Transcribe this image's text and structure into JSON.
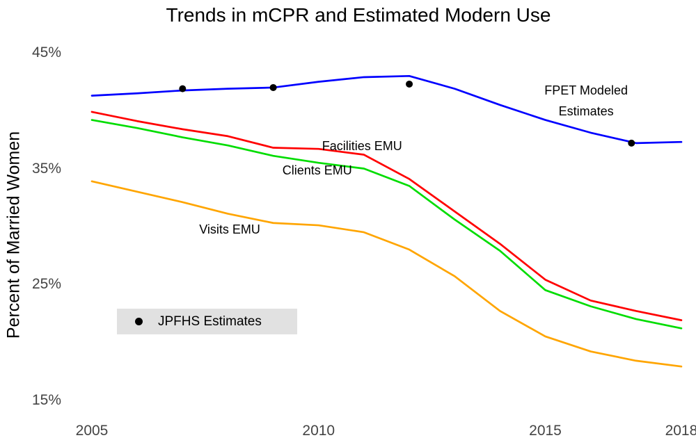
{
  "chart_data": {
    "type": "line",
    "title": "Trends in mCPR and Estimated Modern Use",
    "ylabel": "Percent of Married Women",
    "xlabel": "",
    "grid": false,
    "xlim": [
      2004.5,
      2018.3
    ],
    "ylim": [
      13.5,
      46.5
    ],
    "x_ticks": [
      {
        "value": 2005,
        "label": "2005"
      },
      {
        "value": 2010,
        "label": "2010"
      },
      {
        "value": 2015,
        "label": "2015"
      },
      {
        "value": 2018,
        "label": "2018"
      }
    ],
    "y_ticks": [
      {
        "value": 45,
        "label": "45%"
      },
      {
        "value": 35,
        "label": "35%"
      },
      {
        "value": 25,
        "label": "25%"
      },
      {
        "value": 15,
        "label": "15%"
      }
    ],
    "x": [
      2005,
      2006,
      2007,
      2008,
      2009,
      2010,
      2011,
      2012,
      2013,
      2014,
      2015,
      2016,
      2017,
      2018
    ],
    "series": [
      {
        "id": "fpet",
        "name": "FPET Modeled Estimates",
        "color": "#0000ff",
        "values": [
          41.3,
          41.5,
          41.75,
          41.9,
          42.0,
          42.5,
          42.9,
          43.0,
          41.9,
          40.5,
          39.2,
          38.1,
          37.2,
          37.3
        ]
      },
      {
        "id": "facilities-emu",
        "name": "Facilities EMU",
        "color": "#ff0000",
        "values": [
          39.9,
          39.1,
          38.4,
          37.8,
          36.8,
          36.7,
          36.2,
          34.1,
          31.3,
          28.5,
          25.4,
          23.6,
          22.7,
          21.9
        ]
      },
      {
        "id": "clients-emu",
        "name": "Clients EMU",
        "color": "#00dd00",
        "values": [
          39.2,
          38.5,
          37.7,
          37.0,
          36.1,
          35.5,
          35.0,
          33.5,
          30.6,
          27.9,
          24.5,
          23.1,
          22.0,
          21.2
        ]
      },
      {
        "id": "visits-emu",
        "name": "Visits EMU",
        "color": "#ffa500",
        "values": [
          33.9,
          33.0,
          32.1,
          31.1,
          30.3,
          30.1,
          29.5,
          28.0,
          25.7,
          22.7,
          20.5,
          19.2,
          18.4,
          17.9
        ]
      }
    ],
    "scatter": {
      "name": "JPFHS Estimates",
      "color": "#000000",
      "points": [
        {
          "x": 2007,
          "y": 41.9
        },
        {
          "x": 2009,
          "y": 42.0
        },
        {
          "x": 2012,
          "y": 42.3
        },
        {
          "x": 2016.9,
          "y": 37.2
        }
      ]
    },
    "annotations": [
      {
        "id": "fpet-label",
        "lines": [
          "FPET Modeled",
          "Estimates"
        ],
        "x": 2015.9,
        "y": 40.86
      },
      {
        "id": "facilities-emu-label",
        "lines": [
          "Facilities EMU"
        ],
        "x": 2010.96,
        "y": 36.95
      },
      {
        "id": "clients-emu-label",
        "lines": [
          "Clients EMU"
        ],
        "x": 2009.97,
        "y": 34.85
      },
      {
        "id": "visits-emu-label",
        "lines": [
          "Visits EMU"
        ],
        "x": 2008.04,
        "y": 29.74
      }
    ],
    "legend": {
      "label": "JPFHS Estimates",
      "marker": "point",
      "position": "bottom-left",
      "bg": "#e1e1e1"
    }
  }
}
